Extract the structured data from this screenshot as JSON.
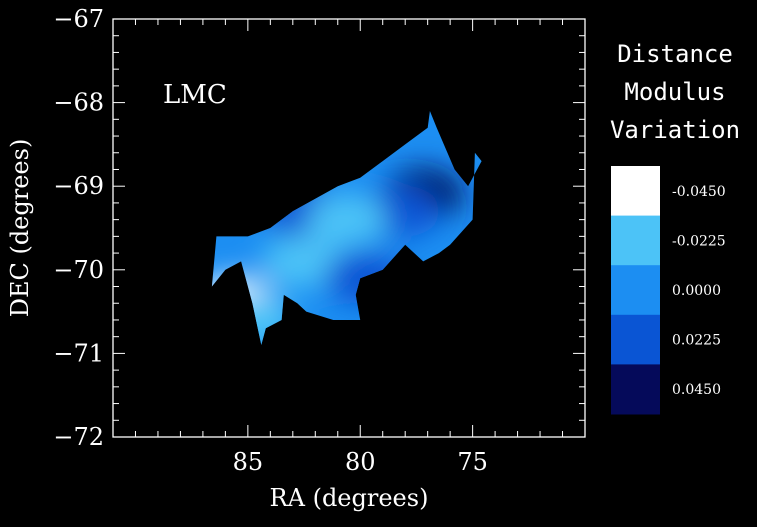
{
  "chart_data": {
    "type": "heatmap",
    "title": "",
    "annotation": "LMC",
    "xlabel": "RA (degrees)",
    "ylabel": "DEC (degrees)",
    "xlim": [
      91,
      70
    ],
    "ylim": [
      -72,
      -67
    ],
    "x_ticks": [
      85,
      80,
      75
    ],
    "x_tick_labels": [
      "85",
      "80",
      "75"
    ],
    "y_ticks": [
      -67,
      -68,
      -69,
      -70,
      -71,
      -72
    ],
    "y_tick_labels": [
      "−67",
      "−68",
      "−69",
      "−70",
      "−71",
      "−72"
    ],
    "grid": false,
    "colorbar": {
      "title_lines": [
        "Distance",
        "Modulus",
        "Variation"
      ],
      "levels": [
        {
          "value": -0.045,
          "label": "-0.0450",
          "color": "#ffffff"
        },
        {
          "value": -0.0225,
          "label": "-0.0225",
          "color": "#4cc3f7"
        },
        {
          "value": 0.0,
          "label": "0.0000",
          "color": "#1c8ef2"
        },
        {
          "value": 0.0225,
          "label": "0.0225",
          "color": "#0a55d4"
        },
        {
          "value": 0.045,
          "label": "0.0450",
          "color": "#050a5a"
        }
      ]
    },
    "region_outline_radec": [
      [
        86.6,
        -70.2
      ],
      [
        86.0,
        -70.0
      ],
      [
        85.3,
        -69.9
      ],
      [
        84.8,
        -70.4
      ],
      [
        84.4,
        -70.9
      ],
      [
        84.2,
        -70.7
      ],
      [
        83.5,
        -70.6
      ],
      [
        83.4,
        -70.3
      ],
      [
        82.8,
        -70.4
      ],
      [
        82.4,
        -70.5
      ],
      [
        81.2,
        -70.6
      ],
      [
        80.0,
        -70.6
      ],
      [
        80.2,
        -70.3
      ],
      [
        80.0,
        -70.1
      ],
      [
        79.0,
        -70.0
      ],
      [
        78.0,
        -69.7
      ],
      [
        77.2,
        -69.9
      ],
      [
        76.5,
        -69.8
      ],
      [
        76.0,
        -69.7
      ],
      [
        75.0,
        -69.4
      ],
      [
        74.9,
        -68.6
      ],
      [
        74.6,
        -68.7
      ],
      [
        75.2,
        -69.0
      ],
      [
        75.8,
        -68.8
      ],
      [
        76.6,
        -68.3
      ],
      [
        76.9,
        -68.1
      ],
      [
        77.0,
        -68.3
      ],
      [
        78.0,
        -68.5
      ],
      [
        79.0,
        -68.7
      ],
      [
        80.0,
        -68.9
      ],
      [
        81.0,
        -69.0
      ],
      [
        83.0,
        -69.3
      ],
      [
        84.0,
        -69.5
      ],
      [
        85.0,
        -69.6
      ],
      [
        86.4,
        -69.6
      ]
    ],
    "value_blobs": [
      {
        "ra": 77.2,
        "dec": -69.1,
        "value": 0.045
      },
      {
        "ra": 78.2,
        "dec": -69.3,
        "value": 0.0225
      },
      {
        "ra": 82.5,
        "dec": -69.3,
        "value": 0.0225
      },
      {
        "ra": 80.6,
        "dec": -69.4,
        "value": -0.0225
      },
      {
        "ra": 85.6,
        "dec": -70.4,
        "value": -0.045
      },
      {
        "ra": 84.7,
        "dec": -70.6,
        "value": -0.0225
      },
      {
        "ra": 82.6,
        "dec": -69.9,
        "value": -0.0225
      },
      {
        "ra": 79.8,
        "dec": -70.1,
        "value": 0.0225
      }
    ]
  }
}
